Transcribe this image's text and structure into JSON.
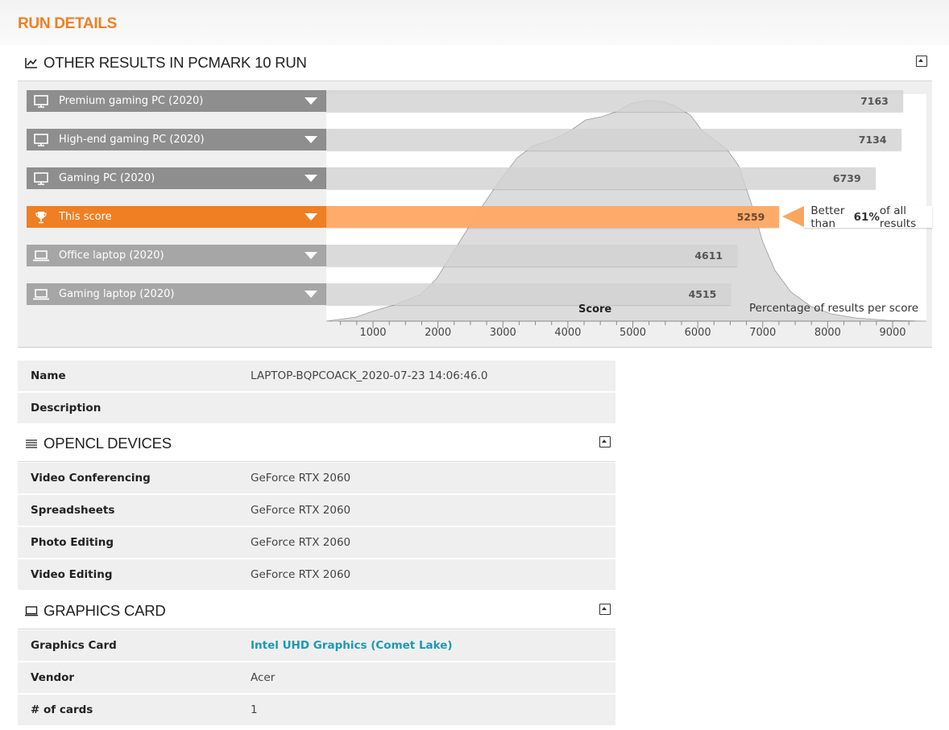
{
  "page_title": "RUN DETAILS",
  "results_section": {
    "title": "OTHER RESULTS IN PCMARK 10 RUN",
    "rows": [
      {
        "label": "Premium gaming PC (2020)",
        "value": 7163,
        "icon": "desktop-icon",
        "style": "dark"
      },
      {
        "label": "High-end gaming PC (2020)",
        "value": 7134,
        "icon": "desktop-icon",
        "style": "dark"
      },
      {
        "label": "Gaming PC (2020)",
        "value": 6739,
        "icon": "desktop-icon",
        "style": "dark"
      },
      {
        "label": "This score",
        "value": 5259,
        "icon": "trophy-icon",
        "style": "orange"
      },
      {
        "label": "Office laptop (2020)",
        "value": 4611,
        "icon": "laptop-icon",
        "style": "light"
      },
      {
        "label": "Gaming laptop (2020)",
        "value": 4515,
        "icon": "laptop-icon",
        "style": "light"
      }
    ],
    "callout": {
      "prefix": "Better than ",
      "percent": "61%",
      "suffix": " of all results"
    },
    "axis_title": "Score",
    "axis_note": "Percentage of results per score",
    "ticks": [
      "1000",
      "2000",
      "3000",
      "4000",
      "5000",
      "6000",
      "7000",
      "8000",
      "9000"
    ],
    "colors": {
      "accent": "#f07f23",
      "bar": "#d2d2d2",
      "label_dark": "#8e8e8e",
      "label_light": "#a6a6a6"
    }
  },
  "info": {
    "rows": [
      {
        "key": "Name",
        "value": "LAPTOP-BQPCOACK_2020-07-23 14:06:46.0"
      },
      {
        "key": "Description",
        "value": ""
      }
    ]
  },
  "opencl": {
    "title": "OPENCL DEVICES",
    "rows": [
      {
        "key": "Video Conferencing",
        "value": "GeForce RTX 2060"
      },
      {
        "key": "Spreadsheets",
        "value": "GeForce RTX 2060"
      },
      {
        "key": "Photo Editing",
        "value": "GeForce RTX 2060"
      },
      {
        "key": "Video Editing",
        "value": "GeForce RTX 2060"
      }
    ]
  },
  "graphics": {
    "title": "GRAPHICS CARD",
    "rows": [
      {
        "key": "Graphics Card",
        "value": "Intel UHD Graphics (Comet Lake)",
        "link": true
      },
      {
        "key": "Vendor",
        "value": "Acer"
      },
      {
        "key": "# of cards",
        "value": "1"
      }
    ]
  }
}
